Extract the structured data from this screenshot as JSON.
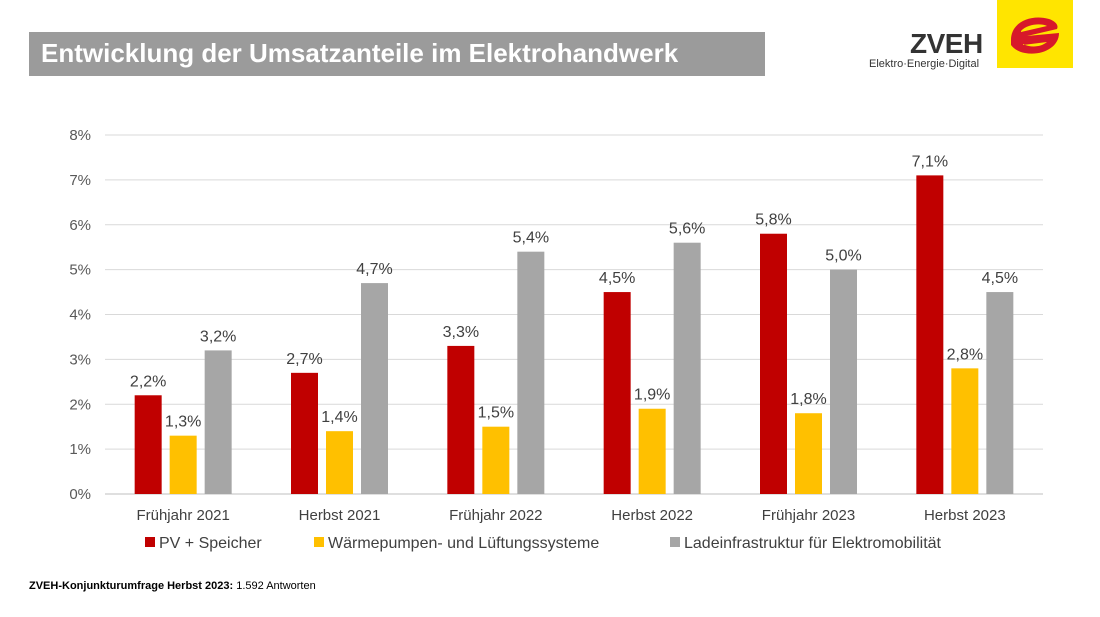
{
  "header": {
    "title": "Entwicklung der Umsatzanteile im Elektrohandwerk"
  },
  "logo": {
    "name": "ZVEH",
    "tagline": "Elektro·Energie·Digital",
    "colors": {
      "square": "#ffe500",
      "mark": "#d7182a"
    }
  },
  "chart_data": {
    "type": "bar",
    "categories": [
      "Frühjahr 2021",
      "Herbst 2021",
      "Frühjahr 2022",
      "Herbst 2022",
      "Frühjahr 2023",
      "Herbst 2023"
    ],
    "series": [
      {
        "name": "PV + Speicher",
        "color": "#c00000",
        "values": [
          2.2,
          2.7,
          3.3,
          4.5,
          5.8,
          7.1
        ],
        "labels": [
          "2,2%",
          "2,7%",
          "3,3%",
          "4,5%",
          "5,8%",
          "7,1%"
        ]
      },
      {
        "name": "Wärmepumpen- und Lüftungssysteme",
        "color": "#ffc000",
        "values": [
          1.3,
          1.4,
          1.5,
          1.9,
          1.8,
          2.8
        ],
        "labels": [
          "1,3%",
          "1,4%",
          "1,5%",
          "1,9%",
          "1,8%",
          "2,8%"
        ]
      },
      {
        "name": "Ladeinfrastruktur für Elektromobilität",
        "color": "#a6a6a6",
        "values": [
          3.2,
          4.7,
          5.4,
          5.6,
          5.0,
          4.5
        ],
        "labels": [
          "3,2%",
          "4,7%",
          "5,4%",
          "5,6%",
          "5,0%",
          "4,5%"
        ]
      }
    ],
    "yticks": [
      0,
      1,
      2,
      3,
      4,
      5,
      6,
      7,
      8
    ],
    "ytick_labels": [
      "0%",
      "1%",
      "2%",
      "3%",
      "4%",
      "5%",
      "6%",
      "7%",
      "8%"
    ],
    "ylim": [
      0,
      8
    ],
    "grid": true,
    "legend": "bottom"
  },
  "footer": {
    "source_bold": "ZVEH-Konjunkturumfrage Herbst 2023:",
    "source_rest": " 1.592 Antworten"
  }
}
